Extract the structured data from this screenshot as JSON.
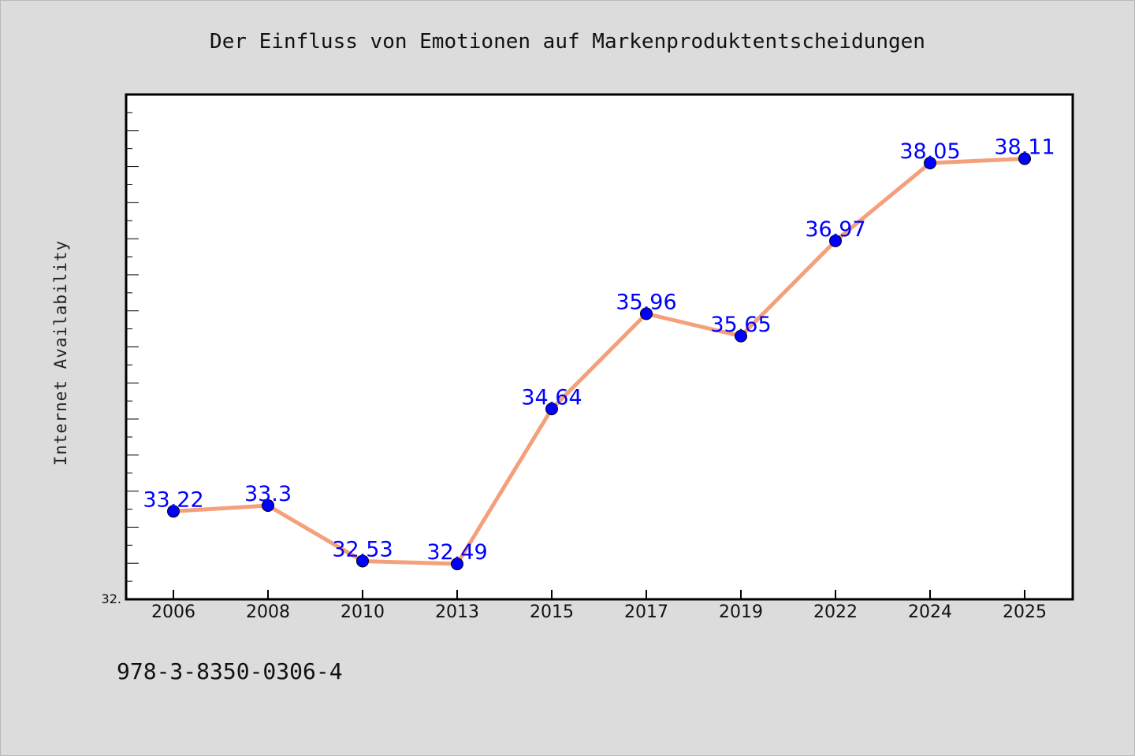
{
  "chart_data": {
    "type": "line",
    "title": "Der Einfluss von Emotionen auf Markenproduktentscheidungen",
    "xlabel": "",
    "ylabel": "Internet Availability",
    "categories": [
      "2006",
      "2008",
      "2010",
      "2013",
      "2015",
      "2017",
      "2019",
      "2022",
      "2024",
      "2025"
    ],
    "series": [
      {
        "values": [
          33.22,
          33.3,
          32.53,
          32.49,
          34.64,
          35.96,
          35.65,
          36.97,
          38.05,
          38.11
        ],
        "data_labels": [
          "33.22",
          "33.3",
          "32.53",
          "32.49",
          "34.64",
          "35.96",
          "35.65",
          "36.97",
          "38.05",
          "38.11"
        ]
      }
    ],
    "ylim": [
      32.0,
      39.0
    ],
    "y_tick_label_shown": "32.",
    "line_color": "#f4a07a",
    "marker_color": "#0000ff",
    "label_color": "#0000ff",
    "grid": false,
    "legend": "none"
  },
  "footer": {
    "isbn": "978-3-8350-0306-4"
  }
}
